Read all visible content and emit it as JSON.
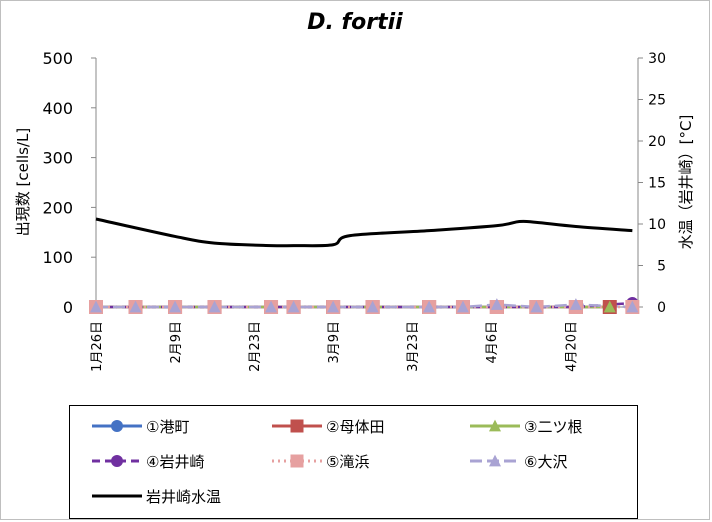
{
  "chart_data": {
    "type": "line",
    "title": "D. fortii",
    "ylabel": "出現数 [cells/L]",
    "y2label": "水温（岩井崎）[°C]",
    "ylim": [
      0,
      500
    ],
    "y2lim": [
      0,
      30
    ],
    "yticks": [
      "0",
      "100",
      "200",
      "300",
      "400",
      "500"
    ],
    "y2ticks": [
      "0",
      "5",
      "10",
      "15",
      "20",
      "25",
      "30"
    ],
    "xlim": [
      "2015-01-26",
      "2015-05-02"
    ],
    "xticks": [
      {
        "date": "2015-01-26",
        "label": "1月26日"
      },
      {
        "date": "2015-02-09",
        "label": "2月9日"
      },
      {
        "date": "2015-02-23",
        "label": "2月23日"
      },
      {
        "date": "2015-03-09",
        "label": "3月9日"
      },
      {
        "date": "2015-03-23",
        "label": "3月23日"
      },
      {
        "date": "2015-04-06",
        "label": "4月6日"
      },
      {
        "date": "2015-04-20",
        "label": "4月20日"
      }
    ],
    "grid": false,
    "legend_position": "bottom",
    "sample_dates": [
      "2015-01-26",
      "2015-02-02",
      "2015-02-09",
      "2015-02-16",
      "2015-02-26",
      "2015-03-02",
      "2015-03-09",
      "2015-03-16",
      "2015-03-26",
      "2015-04-01",
      "2015-04-07",
      "2015-04-14",
      "2015-04-21",
      "2015-04-27",
      "2015-05-01"
    ],
    "series": [
      {
        "name": "①港町",
        "axis": "left",
        "color": "#4472c4",
        "marker": "circle",
        "dash": "solid",
        "x": [
          "2015-01-26",
          "2015-02-02",
          "2015-02-09",
          "2015-02-16",
          "2015-02-26",
          "2015-03-02",
          "2015-03-09",
          "2015-03-16",
          "2015-03-26",
          "2015-04-01",
          "2015-04-07",
          "2015-04-14",
          "2015-04-21",
          "2015-04-27"
        ],
        "values": [
          0,
          0,
          0,
          0,
          0,
          0,
          0,
          0,
          0,
          0,
          0,
          0,
          0,
          0
        ]
      },
      {
        "name": "②母体田",
        "axis": "left",
        "color": "#c0504d",
        "marker": "square",
        "dash": "solid",
        "x": [
          "2015-01-26",
          "2015-02-02",
          "2015-02-09",
          "2015-02-16",
          "2015-02-26",
          "2015-03-02",
          "2015-03-09",
          "2015-03-16",
          "2015-03-26",
          "2015-04-01",
          "2015-04-07",
          "2015-04-14",
          "2015-04-21",
          "2015-04-27"
        ],
        "values": [
          0,
          0,
          0,
          0,
          0,
          0,
          0,
          0,
          0,
          0,
          0,
          0,
          0,
          0
        ]
      },
      {
        "name": "③二ツ根",
        "axis": "left",
        "color": "#9bbb59",
        "marker": "triangle",
        "dash": "solid",
        "x": [
          "2015-01-26",
          "2015-02-02",
          "2015-02-09",
          "2015-02-16",
          "2015-02-26",
          "2015-03-02",
          "2015-03-09",
          "2015-03-16",
          "2015-03-26",
          "2015-04-01",
          "2015-04-07",
          "2015-04-14",
          "2015-04-21",
          "2015-04-27"
        ],
        "values": [
          0,
          0,
          0,
          0,
          0,
          0,
          0,
          0,
          0,
          0,
          0,
          0,
          0,
          0
        ]
      },
      {
        "name": "④岩井崎",
        "axis": "left",
        "color": "#7030a0",
        "marker": "circle",
        "dash": "dash",
        "x": [
          "2015-01-26",
          "2015-02-02",
          "2015-02-09",
          "2015-02-16",
          "2015-02-26",
          "2015-03-02",
          "2015-03-09",
          "2015-03-16",
          "2015-03-26",
          "2015-04-01",
          "2015-04-07",
          "2015-04-14",
          "2015-04-21",
          "2015-05-01"
        ],
        "values": [
          0,
          0,
          0,
          0,
          0,
          0,
          0,
          0,
          0,
          0,
          0,
          0,
          0,
          8
        ]
      },
      {
        "name": "⑤滝浜",
        "axis": "left",
        "color": "#e6a0a0",
        "marker": "square",
        "dash": "dot",
        "x": [
          "2015-01-26",
          "2015-02-02",
          "2015-02-09",
          "2015-02-16",
          "2015-02-26",
          "2015-03-02",
          "2015-03-09",
          "2015-03-16",
          "2015-03-26",
          "2015-04-01",
          "2015-04-07",
          "2015-04-14",
          "2015-04-21",
          "2015-05-01"
        ],
        "values": [
          0,
          0,
          0,
          0,
          0,
          0,
          0,
          0,
          0,
          0,
          0,
          0,
          0,
          0
        ]
      },
      {
        "name": "⑥大沢",
        "axis": "left",
        "color": "#a9a3d3",
        "marker": "triangle",
        "dash": "long",
        "x": [
          "2015-01-26",
          "2015-02-02",
          "2015-02-09",
          "2015-02-16",
          "2015-02-26",
          "2015-03-02",
          "2015-03-09",
          "2015-03-16",
          "2015-03-26",
          "2015-04-01",
          "2015-04-07",
          "2015-04-14",
          "2015-04-21",
          "2015-05-01"
        ],
        "values": [
          0,
          0,
          0,
          0,
          0,
          0,
          0,
          0,
          0,
          0,
          5,
          0,
          5,
          0
        ]
      },
      {
        "name": "岩井崎水温",
        "axis": "right",
        "color": "#000000",
        "marker": "none",
        "dash": "solid",
        "x": [
          "2015-01-26",
          "2015-02-09",
          "2015-02-16",
          "2015-02-26",
          "2015-03-02",
          "2015-03-09",
          "2015-03-12",
          "2015-03-26",
          "2015-04-07",
          "2015-04-11",
          "2015-04-14",
          "2015-04-21",
          "2015-05-01"
        ],
        "values": [
          10.6,
          8.5,
          7.7,
          7.4,
          7.4,
          7.5,
          8.6,
          9.2,
          9.8,
          10.3,
          10.2,
          9.7,
          9.2
        ]
      }
    ]
  }
}
